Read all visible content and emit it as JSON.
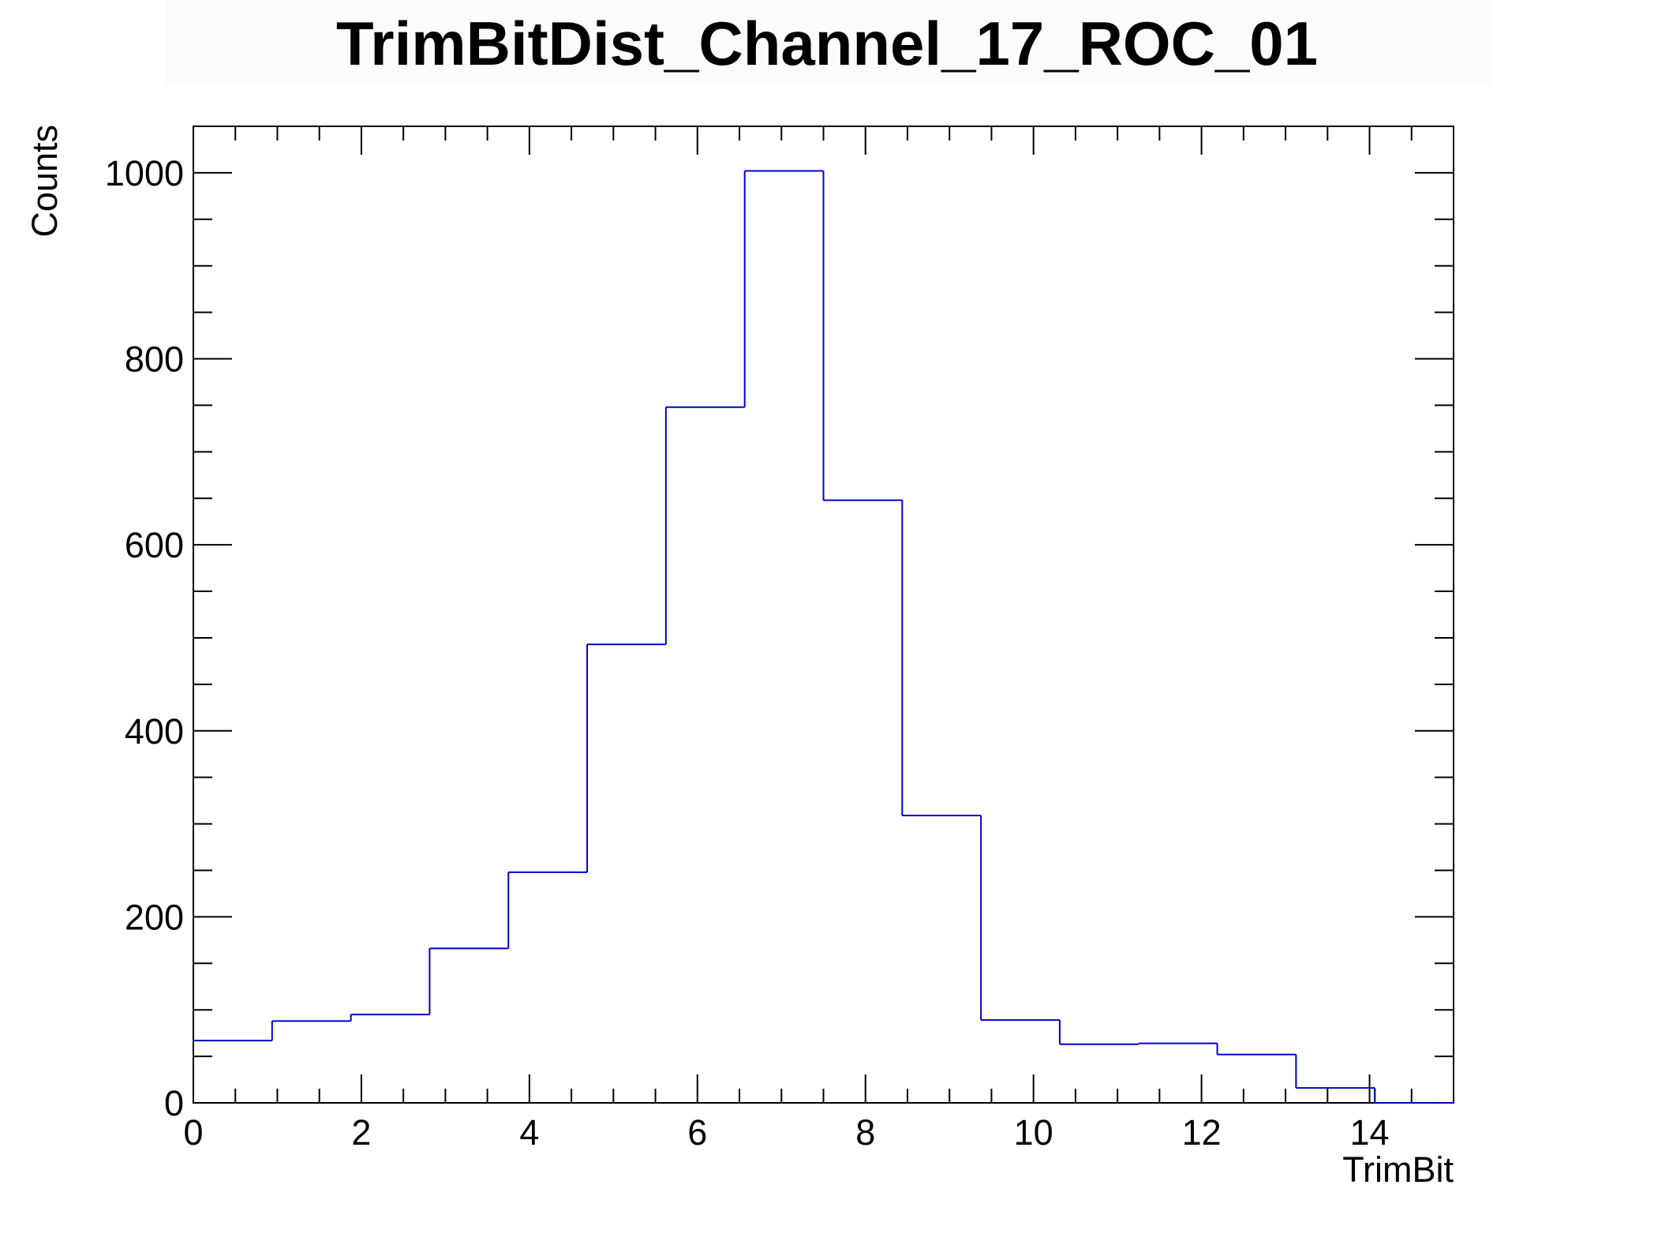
{
  "chart_data": {
    "type": "bar",
    "title": "TrimBitDist_Channel_17_ROC_01",
    "xlabel": "TrimBit",
    "ylabel": "Counts",
    "xlim": [
      0,
      15
    ],
    "ylim": [
      0,
      1050
    ],
    "bin_edges": [
      0,
      0.9375,
      1.875,
      2.8125,
      3.75,
      4.6875,
      5.625,
      6.5625,
      7.5,
      8.4375,
      9.375,
      10.3125,
      11.25,
      12.1875,
      13.125,
      14.0625,
      15
    ],
    "values": [
      67,
      88,
      95,
      166,
      248,
      493,
      748,
      1002,
      648,
      309,
      89,
      63,
      64,
      52,
      16,
      0
    ],
    "x_ticks": [
      0,
      2,
      4,
      6,
      8,
      10,
      12,
      14
    ],
    "x_tick_labels": [
      "0",
      "2",
      "4",
      "6",
      "8",
      "10",
      "12",
      "14"
    ],
    "y_ticks": [
      0,
      200,
      400,
      600,
      800,
      1000
    ],
    "y_tick_labels": [
      "0",
      "200",
      "400",
      "600",
      "800",
      "1000"
    ],
    "line_color": "#0000cc",
    "grid": false,
    "legend": "none"
  }
}
